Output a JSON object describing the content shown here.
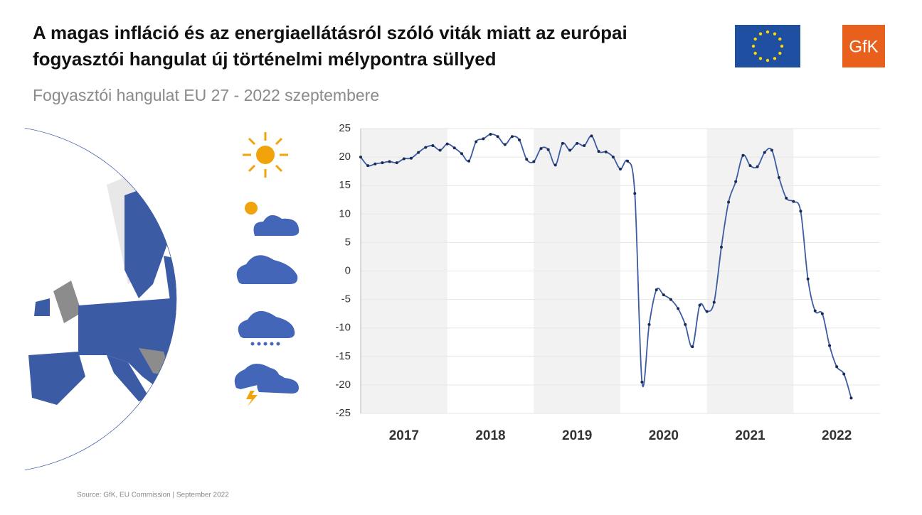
{
  "header": {
    "title_line1": "A magas infláció és az energiaellátásról szóló viták miatt az európai",
    "title_line2": "fogyasztói hangulat új történelmi mélypontra süllyed",
    "subtitle": "Fogyasztói hangulat EU 27 - 2022 szeptembere",
    "logo": "GfK"
  },
  "footer": {
    "source": "Source: GfK, EU  Commission  |  September 2022"
  },
  "chart_data": {
    "type": "line",
    "color": "#3b5ba5",
    "x": [
      2017.0,
      2017.083,
      2017.167,
      2017.25,
      2017.333,
      2017.417,
      2017.5,
      2017.583,
      2017.667,
      2017.75,
      2017.833,
      2017.917,
      2018.0,
      2018.083,
      2018.167,
      2018.25,
      2018.333,
      2018.417,
      2018.5,
      2018.583,
      2018.667,
      2018.75,
      2018.833,
      2018.917,
      2019.0,
      2019.083,
      2019.167,
      2019.25,
      2019.333,
      2019.417,
      2019.5,
      2019.583,
      2019.667,
      2019.75,
      2019.833,
      2019.917,
      2020.0,
      2020.083,
      2020.167,
      2020.25,
      2020.333,
      2020.417,
      2020.5,
      2020.583,
      2020.667,
      2020.75,
      2020.833,
      2020.917,
      2021.0,
      2021.083,
      2021.167,
      2021.25,
      2021.333,
      2021.417,
      2021.5,
      2021.583,
      2021.667,
      2021.75,
      2021.833,
      2021.917,
      2022.0,
      2022.083,
      2022.167,
      2022.25,
      2022.333,
      2022.417,
      2022.5,
      2022.583,
      2022.667
    ],
    "values": [
      20,
      18.5,
      18.8,
      19,
      19.2,
      19,
      19.7,
      19.8,
      20.8,
      21.7,
      22,
      21.2,
      22.3,
      21.6,
      20.6,
      19.3,
      22.7,
      23.2,
      24,
      23.6,
      22.2,
      23.6,
      23,
      19.6,
      19.2,
      21.5,
      21.3,
      18.6,
      22.4,
      21.2,
      22.4,
      22,
      23.7,
      21,
      20.9,
      20,
      17.9,
      19.3,
      13.6,
      -19.5,
      -9.4,
      -3.3,
      -4.2,
      -5,
      -6.6,
      -9.4,
      -13.3,
      -6,
      -7.1,
      -5.5,
      4.2,
      12.1,
      15.7,
      20.3,
      18.5,
      18.3,
      20.8,
      21.2,
      16.4,
      12.8,
      12.2,
      10.5,
      -1.4,
      -7,
      -7.5,
      -13.1,
      -16.8,
      -18.1,
      -22.3
    ],
    "xlim": [
      2017,
      2023
    ],
    "xticks": [
      2017,
      2018,
      2019,
      2020,
      2021,
      2022
    ],
    "ylim": [
      -25,
      25
    ],
    "yticks": [
      -25,
      -20,
      -15,
      -10,
      -5,
      0,
      5,
      10,
      15,
      20,
      25
    ],
    "grid": true
  }
}
